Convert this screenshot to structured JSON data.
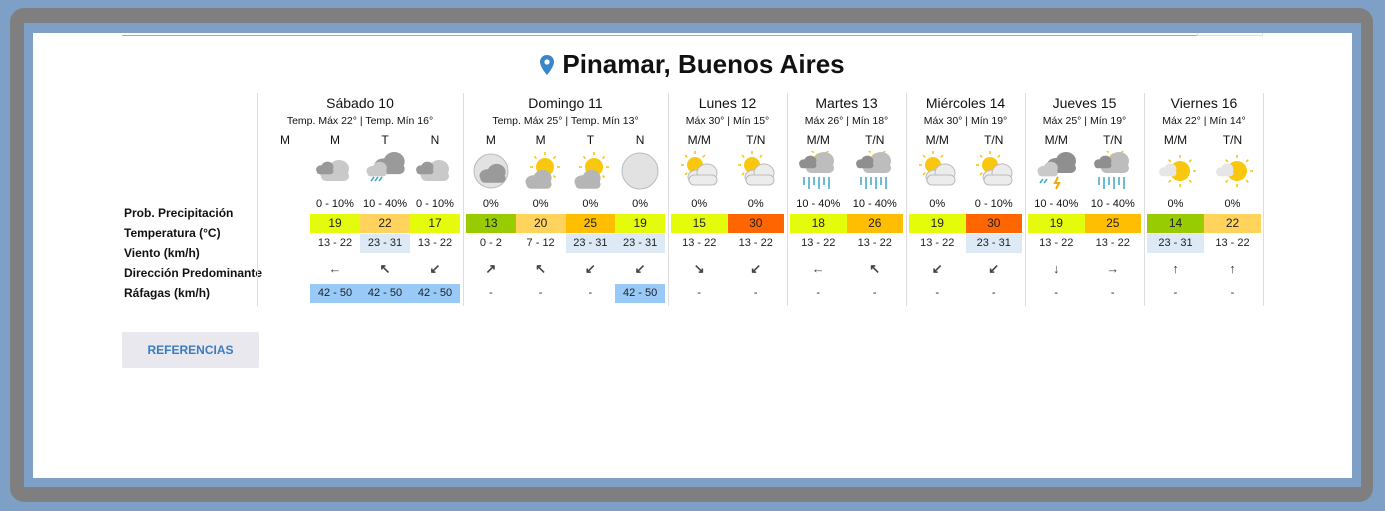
{
  "location": {
    "title": "Pinamar, Buenos Aires",
    "icon": "map-pin-icon",
    "icon_color": "#3a86c8"
  },
  "row_labels": [
    "Prob. Precipitación",
    "Temperatura (°C)",
    "Viento (km/h)",
    "Dirección Predominante",
    "Ráfagas (km/h)"
  ],
  "references_button": "REFERENCIAS",
  "colors": {
    "wind_highlight": "#dde9f5",
    "gust_highlight": "#99c9f7",
    "temp_green": "#99cc00",
    "temp_yellowgreen": "#e4fb0c",
    "temp_lightorange": "#ffd35c",
    "temp_orange": "#ffbf00",
    "temp_red": "#ff6600"
  },
  "days": [
    {
      "name": "Sábado 10",
      "subtitle": "Temp. Máx 22° | Temp. Mín 16°",
      "periods": [
        {
          "label": "M",
          "icon": "",
          "prob": "",
          "temp": "",
          "temp_color": "",
          "wind": "",
          "wind_hl": false,
          "dir": "",
          "gust": ""
        },
        {
          "label": "M",
          "icon": "cloudy-icon",
          "prob": "0 - 10%",
          "temp": "19",
          "temp_color": "#e4fb0c",
          "wind": "13 - 22",
          "wind_hl": false,
          "dir": "←",
          "gust": "42 - 50"
        },
        {
          "label": "T",
          "icon": "storm-drizzle-icon",
          "prob": "10 - 40%",
          "temp": "22",
          "temp_color": "#ffd35c",
          "wind": "23 - 31",
          "wind_hl": true,
          "dir": "↖",
          "gust": "42 - 50"
        },
        {
          "label": "N",
          "icon": "cloudy-icon",
          "prob": "0 - 10%",
          "temp": "17",
          "temp_color": "#e4fb0c",
          "wind": "13 - 22",
          "wind_hl": false,
          "dir": "↙",
          "gust": "42 - 50"
        }
      ]
    },
    {
      "name": "Domingo 11",
      "subtitle": "Temp. Máx 25° | Temp. Mín 13°",
      "periods": [
        {
          "label": "M",
          "icon": "moon-cloud-icon",
          "prob": "0%",
          "temp": "13",
          "temp_color": "#99cc00",
          "wind": "0 - 2",
          "wind_hl": false,
          "dir": "↗",
          "gust": "-"
        },
        {
          "label": "M",
          "icon": "sun-cloud-icon",
          "prob": "0%",
          "temp": "20",
          "temp_color": "#ffd35c",
          "wind": "7 - 12",
          "wind_hl": false,
          "dir": "↖",
          "gust": "-"
        },
        {
          "label": "T",
          "icon": "sun-cloud-icon",
          "prob": "0%",
          "temp": "25",
          "temp_color": "#ffbf00",
          "wind": "23 - 31",
          "wind_hl": true,
          "dir": "↙",
          "gust": "-"
        },
        {
          "label": "N",
          "icon": "moon-icon",
          "prob": "0%",
          "temp": "19",
          "temp_color": "#e4fb0c",
          "wind": "23 - 31",
          "wind_hl": true,
          "dir": "↙",
          "gust": "42 - 50"
        }
      ]
    },
    {
      "name": "Lunes 12",
      "subtitle": "Máx 30° | Mín 15°",
      "periods": [
        {
          "label": "M/M",
          "icon": "partly-cloudy-icon",
          "prob": "0%",
          "temp": "15",
          "temp_color": "#e4fb0c",
          "wind": "13 - 22",
          "wind_hl": false,
          "dir": "↘",
          "gust": "-"
        },
        {
          "label": "T/N",
          "icon": "partly-cloudy-icon",
          "prob": "0%",
          "temp": "30",
          "temp_color": "#ff6600",
          "wind": "13 - 22",
          "wind_hl": false,
          "dir": "↙",
          "gust": "-"
        }
      ]
    },
    {
      "name": "Martes 13",
      "subtitle": "Máx 26° | Mín 18°",
      "periods": [
        {
          "label": "M/M",
          "icon": "rain-icon",
          "prob": "10 - 40%",
          "temp": "18",
          "temp_color": "#e4fb0c",
          "wind": "13 - 22",
          "wind_hl": false,
          "dir": "←",
          "gust": "-"
        },
        {
          "label": "T/N",
          "icon": "rain-icon",
          "prob": "10 - 40%",
          "temp": "26",
          "temp_color": "#ffbf00",
          "wind": "13 - 22",
          "wind_hl": false,
          "dir": "↖",
          "gust": "-"
        }
      ]
    },
    {
      "name": "Miércoles 14",
      "subtitle": "Máx 30° | Mín 19°",
      "periods": [
        {
          "label": "M/M",
          "icon": "partly-cloudy-icon",
          "prob": "0%",
          "temp": "19",
          "temp_color": "#e4fb0c",
          "wind": "13 - 22",
          "wind_hl": false,
          "dir": "↙",
          "gust": "-"
        },
        {
          "label": "T/N",
          "icon": "partly-cloudy-icon",
          "prob": "0 - 10%",
          "temp": "30",
          "temp_color": "#ff6600",
          "wind": "23 - 31",
          "wind_hl": true,
          "dir": "↙",
          "gust": "-"
        }
      ]
    },
    {
      "name": "Jueves 15",
      "subtitle": "Máx 25° | Mín 19°",
      "periods": [
        {
          "label": "M/M",
          "icon": "thunderstorm-icon",
          "prob": "10 - 40%",
          "temp": "19",
          "temp_color": "#e4fb0c",
          "wind": "13 - 22",
          "wind_hl": false,
          "dir": "↓",
          "gust": "-"
        },
        {
          "label": "T/N",
          "icon": "rain-icon",
          "prob": "10 - 40%",
          "temp": "25",
          "temp_color": "#ffbf00",
          "wind": "13 - 22",
          "wind_hl": false,
          "dir": "→",
          "gust": "-"
        }
      ]
    },
    {
      "name": "Viernes 16",
      "subtitle": "Máx 22° | Mín 14°",
      "periods": [
        {
          "label": "M/M",
          "icon": "sun-small-cloud-icon",
          "prob": "0%",
          "temp": "14",
          "temp_color": "#99cc00",
          "wind": "23 - 31",
          "wind_hl": true,
          "dir": "↑",
          "gust": "-"
        },
        {
          "label": "T/N",
          "icon": "sun-small-cloud-icon",
          "prob": "0%",
          "temp": "22",
          "temp_color": "#ffd35c",
          "wind": "13 - 22",
          "wind_hl": false,
          "dir": "↑",
          "gust": "-"
        }
      ]
    }
  ]
}
